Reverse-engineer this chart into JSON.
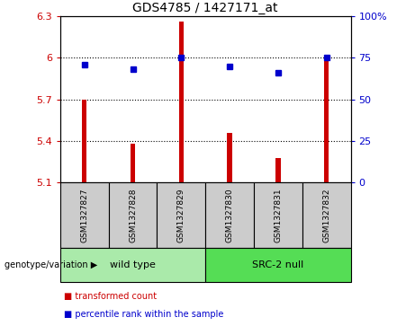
{
  "title": "GDS4785 / 1427171_at",
  "samples": [
    "GSM1327827",
    "GSM1327828",
    "GSM1327829",
    "GSM1327830",
    "GSM1327831",
    "GSM1327832"
  ],
  "bar_values": [
    5.7,
    5.38,
    6.26,
    5.46,
    5.28,
    5.98
  ],
  "percentile_values": [
    71,
    68,
    75,
    70,
    66,
    75
  ],
  "bar_bottom": 5.1,
  "ylim_left": [
    5.1,
    6.3
  ],
  "ylim_right": [
    0,
    100
  ],
  "yticks_left": [
    5.1,
    5.4,
    5.7,
    6.0,
    6.3
  ],
  "yticks_right": [
    0,
    25,
    50,
    75,
    100
  ],
  "ytick_labels_left": [
    "5.1",
    "5.4",
    "5.7",
    "6",
    "6.3"
  ],
  "ytick_labels_right": [
    "0",
    "25",
    "50",
    "75",
    "100%"
  ],
  "hlines": [
    5.4,
    5.7,
    6.0
  ],
  "bar_color": "#cc0000",
  "dot_color": "#0000cc",
  "bar_width": 0.1,
  "groups": [
    {
      "label": "wild type",
      "indices": [
        0,
        1,
        2
      ],
      "color": "#aaeaaa"
    },
    {
      "label": "SRC-2 null",
      "indices": [
        3,
        4,
        5
      ],
      "color": "#55dd55"
    }
  ],
  "group_label_prefix": "genotype/variation",
  "legend_items": [
    {
      "color": "#cc0000",
      "label": "transformed count"
    },
    {
      "color": "#0000cc",
      "label": "percentile rank within the sample"
    }
  ],
  "plot_bg_color": "#ffffff",
  "sample_box_color": "#cccccc",
  "dot_size": 5
}
